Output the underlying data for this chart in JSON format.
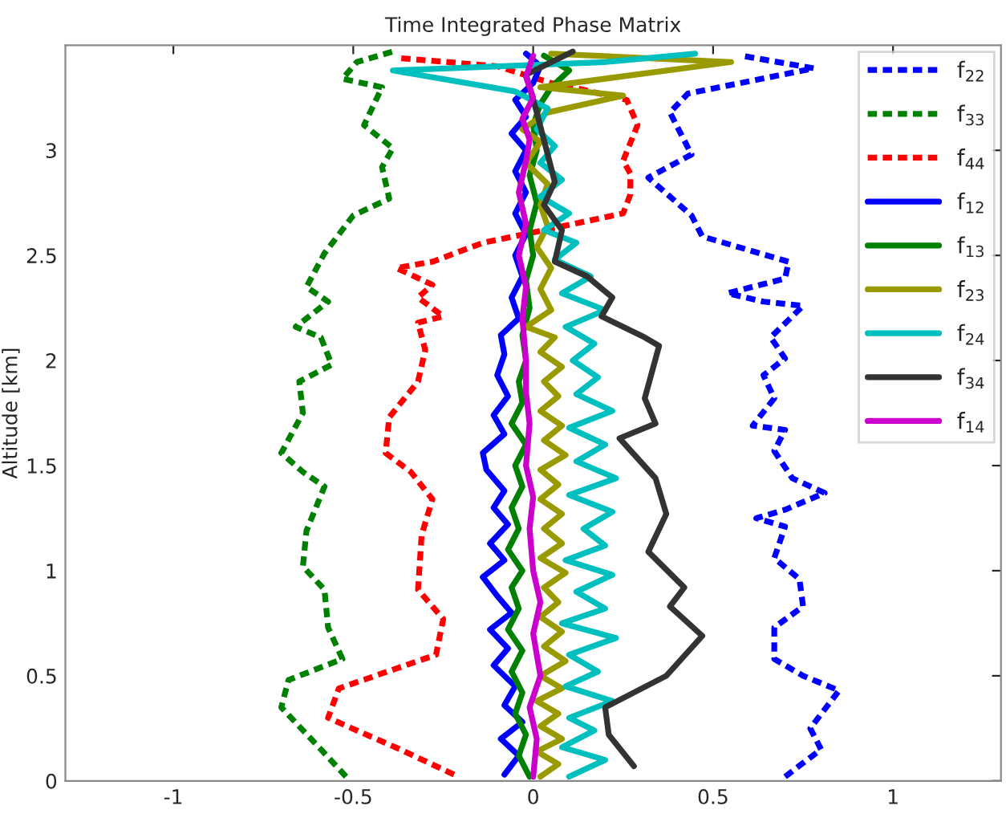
{
  "chart_data": {
    "type": "line",
    "title": "Time Integrated Phase Matrix",
    "ylabel": "Altitude [km]",
    "xlim": [
      -1.3,
      1.3
    ],
    "ylim": [
      0,
      3.5
    ],
    "xticks": [
      {
        "value": -1,
        "label": "-1"
      },
      {
        "value": -0.5,
        "label": "-0.5"
      },
      0,
      0.5,
      1
    ],
    "yticks": [
      0,
      0.5,
      1,
      1.5,
      2,
      2.5,
      3
    ],
    "grid": false,
    "legend": "top right",
    "marker": "none",
    "series": [
      {
        "name": "f$_{22}$",
        "color": "#0000ff",
        "line_style": "dashed",
        "x": [
          0.7,
          0.8,
          0.77,
          0.85,
          0.75,
          0.67,
          0.67,
          0.75,
          0.74,
          0.67,
          0.7,
          0.62,
          0.7,
          0.81,
          0.72,
          0.67,
          0.7,
          0.61,
          0.67,
          0.64,
          0.7,
          0.66,
          0.75,
          0.64,
          0.54,
          0.7,
          0.71,
          0.47,
          0.44,
          0.32,
          0.44,
          0.38,
          0.43,
          0.78,
          0.58
        ],
        "values": [
          0.02,
          0.15,
          0.25,
          0.43,
          0.5,
          0.58,
          0.73,
          0.83,
          0.96,
          1.06,
          1.21,
          1.25,
          1.29,
          1.37,
          1.44,
          1.57,
          1.67,
          1.69,
          1.82,
          1.93,
          2.01,
          2.11,
          2.26,
          2.28,
          2.32,
          2.39,
          2.47,
          2.59,
          2.69,
          2.87,
          2.98,
          3.18,
          3.27,
          3.39,
          3.45
        ]
      },
      {
        "name": "f$_{33}$",
        "color": "#008000",
        "line_style": "dashed",
        "x": [
          -0.52,
          -0.59,
          -0.7,
          -0.68,
          -0.53,
          -0.57,
          -0.58,
          -0.64,
          -0.63,
          -0.58,
          -0.64,
          -0.7,
          -0.64,
          -0.65,
          -0.56,
          -0.59,
          -0.66,
          -0.57,
          -0.63,
          -0.58,
          -0.5,
          -0.4,
          -0.42,
          -0.39,
          -0.47,
          -0.42,
          -0.53,
          -0.49,
          -0.39
        ],
        "values": [
          0.02,
          0.15,
          0.35,
          0.48,
          0.58,
          0.73,
          0.91,
          1.02,
          1.19,
          1.4,
          1.47,
          1.56,
          1.75,
          1.9,
          1.98,
          2.11,
          2.16,
          2.28,
          2.35,
          2.51,
          2.69,
          2.77,
          2.92,
          3.01,
          3.12,
          3.3,
          3.34,
          3.42,
          3.47
        ]
      },
      {
        "name": "f$_{44}$",
        "color": "#ff0000",
        "line_style": "dashed",
        "x": [
          -0.22,
          -0.37,
          -0.57,
          -0.54,
          -0.27,
          -0.25,
          -0.32,
          -0.31,
          -0.28,
          -0.34,
          -0.41,
          -0.4,
          -0.32,
          -0.3,
          -0.32,
          -0.25,
          -0.32,
          -0.28,
          -0.38,
          -0.28,
          -0.14,
          0.03,
          0.25,
          0.27,
          0.27,
          0.25,
          0.29,
          0.26,
          0.11,
          0.05,
          -0.1,
          -0.38
        ],
        "values": [
          0.03,
          0.15,
          0.3,
          0.44,
          0.6,
          0.77,
          0.91,
          1.17,
          1.34,
          1.47,
          1.56,
          1.73,
          1.9,
          2.05,
          2.18,
          2.21,
          2.3,
          2.36,
          2.44,
          2.47,
          2.56,
          2.62,
          2.7,
          2.79,
          2.89,
          2.95,
          3.12,
          3.24,
          3.3,
          3.32,
          3.4,
          3.44
        ]
      },
      {
        "name": "f$_{12}$",
        "color": "#0000ff",
        "line_style": "solid",
        "x": [
          -0.08,
          -0.04,
          -0.09,
          -0.03,
          -0.08,
          -0.05,
          -0.11,
          -0.07,
          -0.12,
          -0.06,
          -0.1,
          -0.14,
          -0.08,
          -0.12,
          -0.07,
          -0.11,
          -0.08,
          -0.13,
          -0.14,
          -0.08,
          -0.11,
          -0.07,
          -0.1,
          -0.08,
          -0.09,
          -0.04,
          -0.06,
          -0.03,
          -0.05,
          -0.02,
          -0.05,
          -0.02,
          -0.05,
          -0.02,
          -0.06,
          -0.02,
          -0.05,
          0.0,
          0.02,
          -0.02
        ],
        "values": [
          0.03,
          0.12,
          0.2,
          0.28,
          0.36,
          0.45,
          0.55,
          0.63,
          0.72,
          0.8,
          0.88,
          0.97,
          1.05,
          1.13,
          1.22,
          1.3,
          1.38,
          1.48,
          1.56,
          1.65,
          1.74,
          1.83,
          1.93,
          2.03,
          2.12,
          2.2,
          2.3,
          2.4,
          2.5,
          2.6,
          2.7,
          2.8,
          2.9,
          3.0,
          3.08,
          3.16,
          3.24,
          3.32,
          3.4,
          3.46
        ]
      },
      {
        "name": "f$_{13}$",
        "color": "#008000",
        "line_style": "solid",
        "x": [
          -0.01,
          -0.04,
          -0.02,
          -0.05,
          -0.03,
          -0.06,
          -0.03,
          -0.07,
          -0.04,
          -0.06,
          -0.03,
          -0.07,
          -0.04,
          -0.06,
          -0.03,
          -0.05,
          -0.02,
          -0.06,
          -0.03,
          -0.04,
          -0.02,
          -0.03,
          -0.01,
          -0.02,
          0.0,
          -0.01,
          0.01,
          -0.01,
          0.01,
          0.0,
          0.02,
          0.05,
          0.1,
          0.03
        ],
        "values": [
          0.02,
          0.12,
          0.22,
          0.32,
          0.42,
          0.52,
          0.62,
          0.72,
          0.82,
          0.92,
          1.0,
          1.1,
          1.2,
          1.3,
          1.4,
          1.5,
          1.6,
          1.7,
          1.8,
          1.9,
          2.0,
          2.12,
          2.25,
          2.38,
          2.5,
          2.62,
          2.75,
          2.88,
          3.0,
          3.12,
          3.22,
          3.3,
          3.38,
          3.45
        ]
      },
      {
        "name": "f$_{23}$",
        "color": "#999900",
        "line_style": "solid",
        "x": [
          0.02,
          0.07,
          0.01,
          0.08,
          0.02,
          0.07,
          0.01,
          0.08,
          0.02,
          0.09,
          0.03,
          0.08,
          0.02,
          0.07,
          0.03,
          0.09,
          0.02,
          0.08,
          0.03,
          0.08,
          0.02,
          0.07,
          0.02,
          0.09,
          0.03,
          0.08,
          0.02,
          0.07,
          0.03,
          0.08,
          0.02,
          0.06,
          -0.02,
          0.05,
          0.02,
          0.05,
          0.01,
          0.04,
          0.02,
          0.04,
          -0.02,
          0.02,
          -0.03,
          0.04,
          0.25,
          0.02,
          0.55,
          0.05
        ],
        "values": [
          0.02,
          0.08,
          0.14,
          0.2,
          0.26,
          0.32,
          0.38,
          0.44,
          0.5,
          0.57,
          0.64,
          0.71,
          0.78,
          0.85,
          0.92,
          0.99,
          1.06,
          1.13,
          1.2,
          1.27,
          1.34,
          1.41,
          1.48,
          1.55,
          1.62,
          1.69,
          1.76,
          1.83,
          1.9,
          1.97,
          2.04,
          2.11,
          2.16,
          2.24,
          2.34,
          2.44,
          2.54,
          2.64,
          2.74,
          2.84,
          2.94,
          3.04,
          3.1,
          3.18,
          3.26,
          3.3,
          3.42,
          3.46
        ]
      },
      {
        "name": "f$_{24}$",
        "color": "#00bfbf",
        "line_style": "solid",
        "x": [
          0.1,
          0.2,
          0.08,
          0.17,
          0.1,
          0.22,
          0.09,
          0.18,
          0.1,
          0.23,
          0.08,
          0.2,
          0.12,
          0.22,
          0.09,
          0.2,
          0.14,
          0.22,
          0.1,
          0.23,
          0.12,
          0.2,
          0.1,
          0.22,
          0.12,
          0.18,
          0.11,
          0.17,
          0.09,
          0.2,
          0.08,
          0.16,
          0.06,
          0.12,
          0.03,
          0.1,
          0.02,
          0.08,
          0.02,
          0.06,
          0.01,
          0.04,
          -0.05,
          -0.39,
          0.2,
          0.45
        ],
        "values": [
          0.02,
          0.1,
          0.16,
          0.24,
          0.3,
          0.38,
          0.45,
          0.52,
          0.6,
          0.68,
          0.75,
          0.82,
          0.9,
          0.98,
          1.05,
          1.12,
          1.2,
          1.28,
          1.36,
          1.44,
          1.52,
          1.6,
          1.68,
          1.76,
          1.84,
          1.92,
          2.0,
          2.08,
          2.16,
          2.24,
          2.32,
          2.4,
          2.48,
          2.56,
          2.62,
          2.7,
          2.78,
          2.86,
          2.94,
          3.02,
          3.1,
          3.2,
          3.28,
          3.38,
          3.42,
          3.46
        ]
      },
      {
        "name": "f$_{34}$",
        "color": "#333333",
        "line_style": "solid",
        "x": [
          0.28,
          0.21,
          0.2,
          0.37,
          0.47,
          0.38,
          0.42,
          0.32,
          0.37,
          0.34,
          0.24,
          0.34,
          0.31,
          0.35,
          0.31,
          0.19,
          0.22,
          0.15,
          0.06,
          0.08,
          0.03,
          0.06,
          0.01,
          -0.02,
          0.11
        ],
        "values": [
          0.07,
          0.22,
          0.35,
          0.5,
          0.69,
          0.83,
          0.92,
          1.09,
          1.27,
          1.44,
          1.63,
          1.7,
          1.82,
          2.07,
          2.11,
          2.21,
          2.3,
          2.4,
          2.47,
          2.62,
          2.74,
          2.85,
          3.18,
          3.36,
          3.47
        ]
      },
      {
        "name": "f$_{14}$",
        "color": "#cc00cc",
        "line_style": "solid",
        "x": [
          0.0,
          0.01,
          -0.01,
          0.02,
          0.0,
          0.02,
          0.0,
          -0.01,
          0.0,
          -0.02,
          -0.01,
          -0.02,
          -0.02,
          -0.03,
          -0.02,
          -0.04,
          -0.02,
          -0.04,
          -0.02,
          -0.01,
          -0.03,
          0.0,
          -0.02,
          0.0
        ],
        "values": [
          0.02,
          0.2,
          0.35,
          0.5,
          0.7,
          0.85,
          1.0,
          1.2,
          1.35,
          1.5,
          1.7,
          1.85,
          2.0,
          2.2,
          2.35,
          2.5,
          2.65,
          2.8,
          2.95,
          3.05,
          3.15,
          3.25,
          3.35,
          3.45
        ]
      }
    ]
  }
}
